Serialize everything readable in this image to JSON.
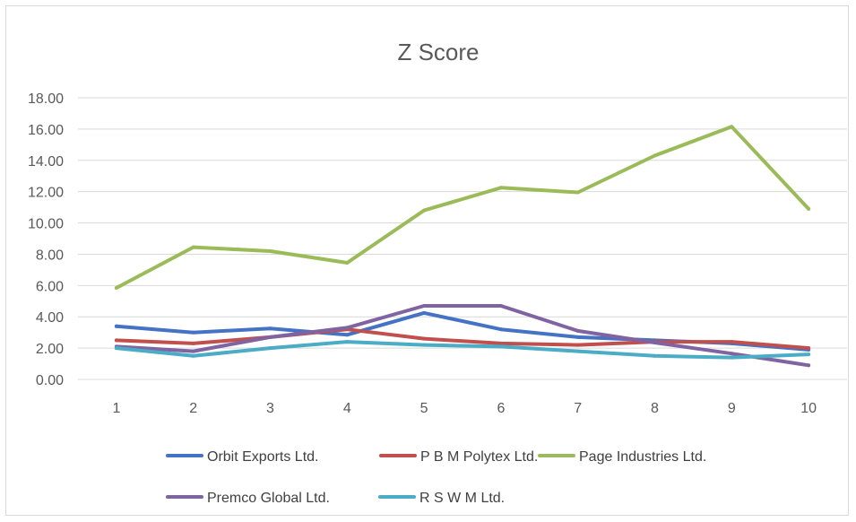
{
  "chart_data": {
    "type": "line",
    "title": "Z Score",
    "xlabel": "",
    "ylabel": "",
    "categories": [
      "1",
      "2",
      "3",
      "4",
      "5",
      "6",
      "7",
      "8",
      "9",
      "10"
    ],
    "ylim": [
      0,
      18
    ],
    "y_ticks": [
      "0.00",
      "2.00",
      "4.00",
      "6.00",
      "8.00",
      "10.00",
      "12.00",
      "14.00",
      "16.00",
      "18.00"
    ],
    "grid": true,
    "legend_position": "bottom",
    "series": [
      {
        "name": "Orbit Exports Ltd.",
        "color": "#4472c4",
        "values": [
          3.4,
          3.0,
          3.25,
          2.85,
          4.25,
          3.2,
          2.7,
          2.5,
          2.3,
          1.9
        ]
      },
      {
        "name": "P B M Polytex Ltd.",
        "color": "#c0504d",
        "values": [
          2.5,
          2.3,
          2.7,
          3.2,
          2.6,
          2.3,
          2.2,
          2.4,
          2.4,
          2.0
        ]
      },
      {
        "name": "Page Industries Ltd.",
        "color": "#9bbb59",
        "values": [
          5.85,
          8.45,
          8.2,
          7.45,
          10.8,
          12.25,
          11.95,
          14.3,
          16.15,
          10.9
        ]
      },
      {
        "name": "Premco Global Ltd.",
        "color": "#8064a2",
        "values": [
          2.1,
          1.8,
          2.7,
          3.3,
          4.7,
          4.7,
          3.1,
          2.35,
          1.65,
          0.9
        ]
      },
      {
        "name": "R S W M Ltd.",
        "color": "#4bacc6",
        "values": [
          2.0,
          1.5,
          2.0,
          2.4,
          2.2,
          2.1,
          1.8,
          1.5,
          1.4,
          1.6
        ]
      }
    ]
  }
}
